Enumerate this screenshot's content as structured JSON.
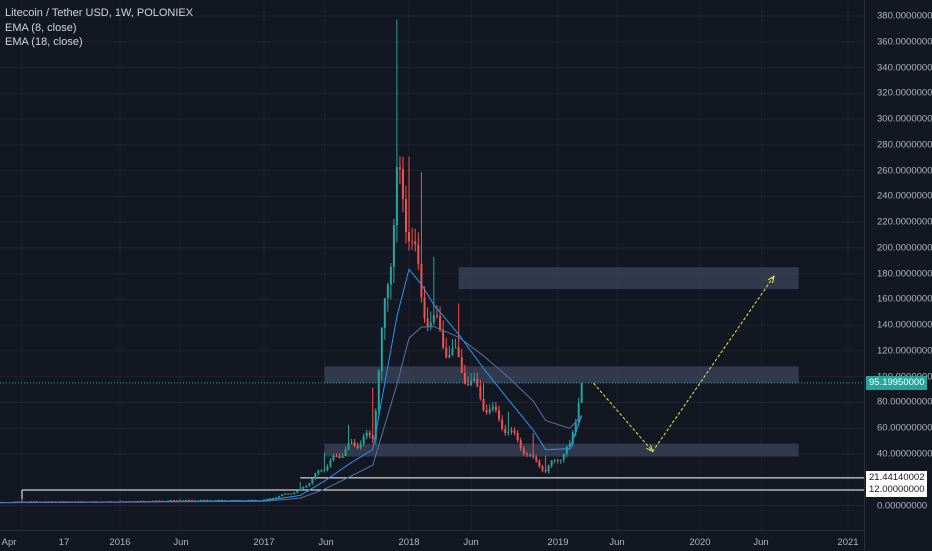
{
  "legend": {
    "title": "Litecoin / Tether USD, 1W, POLONIEX",
    "ema_fast": "EMA (8, close)",
    "ema_slow": "EMA (18, close)"
  },
  "price_axis": {
    "ticks": [
      "380.00000000",
      "360.00000000",
      "340.00000000",
      "320.00000000",
      "300.00000000",
      "280.00000000",
      "260.00000000",
      "240.00000000",
      "220.00000000",
      "200.00000000",
      "180.00000000",
      "160.00000000",
      "140.00000000",
      "120.00000000",
      "100.00000000",
      "80.00000000",
      "60.00000000",
      "40.00000000",
      "0.00000000"
    ],
    "tick_values": [
      380,
      360,
      340,
      320,
      300,
      280,
      260,
      240,
      220,
      200,
      180,
      160,
      140,
      120,
      100,
      80,
      60,
      40,
      0
    ]
  },
  "time_axis": {
    "labels": [
      "Apr",
      "17",
      "2016",
      "Jun",
      "2017",
      "Jun",
      "2018",
      "Jun",
      "2019",
      "Jun",
      "2020",
      "Jun",
      "2021"
    ],
    "dates": [
      "2015-04-01",
      "2015-07-01",
      "2016-01-01",
      "2016-06-01",
      "2017-01-01",
      "2017-06-01",
      "2018-01-01",
      "2018-06-01",
      "2019-01-01",
      "2019-06-01",
      "2020-01-01",
      "2020-06-01",
      "2021-01-01"
    ]
  },
  "price_labels": {
    "current": "95.19950000",
    "current_value": 95.1995,
    "level_1": "21.44140002",
    "level_1_value": 21.44140002,
    "level_2": "12.00000000",
    "level_2_value": 12.0
  },
  "colors": {
    "background": "#131722",
    "up": "#26a69a",
    "down": "#ef5350",
    "ema_fast": "#2196f3",
    "ema_slow": "#5b6ea8",
    "zone": "#3b4258",
    "projection": "#e3e84a",
    "grid": "#1e222d"
  },
  "chart_data": {
    "type": "candlestick",
    "title": "Litecoin / Tether USD, 1W, POLONIEX",
    "ylim": [
      0,
      380
    ],
    "x": [
      "2015-04",
      "2015-07",
      "2016-01",
      "2016-06",
      "2017-01",
      "2017-04",
      "2017-06",
      "2017-08",
      "2017-10",
      "2017-12",
      "2018-01",
      "2018-02",
      "2018-03",
      "2018-05",
      "2018-07",
      "2018-09",
      "2018-11",
      "2018-12",
      "2019-02",
      "2019-03"
    ],
    "close": [
      2,
      3,
      3,
      4,
      4,
      12,
      30,
      45,
      55,
      250,
      220,
      160,
      140,
      110,
      80,
      58,
      35,
      28,
      45,
      95.1995
    ],
    "high": [
      14,
      5,
      4,
      5,
      5,
      18,
      40,
      60,
      90,
      370,
      260,
      250,
      185,
      150,
      90,
      70,
      55,
      38,
      50,
      97
    ],
    "low": [
      1,
      2,
      2,
      3,
      3,
      4,
      22,
      35,
      45,
      80,
      100,
      110,
      105,
      85,
      60,
      50,
      30,
      22,
      28,
      45
    ],
    "zones": [
      {
        "from": "2018-05",
        "to": "2020-09",
        "low": 168,
        "high": 185
      },
      {
        "from": "2017-06",
        "to": "2020-09",
        "low": 95,
        "high": 108
      },
      {
        "from": "2017-06",
        "to": "2020-09",
        "low": 38,
        "high": 48
      }
    ],
    "projection": [
      {
        "x": "2019-04",
        "y": 95
      },
      {
        "x": "2019-09",
        "y": 42
      },
      {
        "x": "2020-07",
        "y": 178
      }
    ]
  }
}
